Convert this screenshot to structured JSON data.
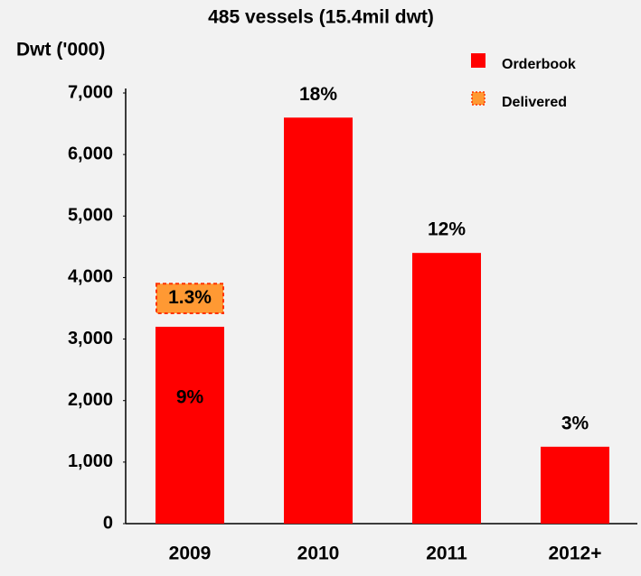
{
  "chart_data": {
    "type": "stacked_bar",
    "title": "485 vessels (15.4mil dwt)",
    "y_label": "Dwt ('000)",
    "categories": [
      "2009",
      "2010",
      "2011",
      "2012+"
    ],
    "series": [
      {
        "name": "Orderbook",
        "color": "#ff0000",
        "values": [
          3200,
          6600,
          4400,
          1250
        ],
        "value_labels": [
          "9%",
          "18%",
          "12%",
          "3%"
        ]
      },
      {
        "name": "Delivered",
        "color": "#ff9933",
        "values": [
          700,
          null,
          null,
          null
        ],
        "value_labels": [
          "1.3%",
          null,
          null,
          null
        ]
      }
    ],
    "ylim": [
      0,
      7000
    ],
    "yticks": [
      0,
      {
        "value": 1000,
        "label": "1,000"
      },
      {
        "value": 2000,
        "label": "2,000"
      },
      {
        "value": 3000,
        "label": "3,000"
      },
      {
        "value": 4000,
        "label": "4,000"
      },
      {
        "value": 5000,
        "label": "5,000"
      },
      {
        "value": 6000,
        "label": "6,000"
      },
      {
        "value": 7000,
        "label": "7,000"
      }
    ],
    "legend": "top-right"
  }
}
